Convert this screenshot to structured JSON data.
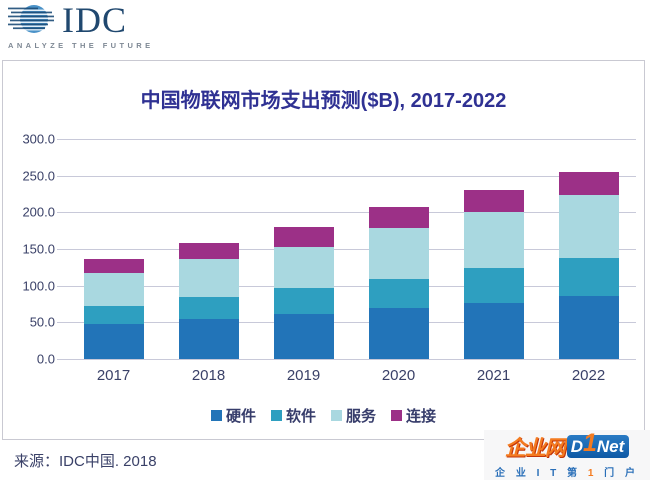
{
  "logo": {
    "wordmark": "IDC",
    "tagline": "ANALYZE THE FUTURE",
    "navy": "#20486F",
    "globe_blue": "#4A92C8"
  },
  "chart_data": {
    "type": "bar",
    "stacked": true,
    "title": "中国物联网市场支出预测($B), 2017-2022",
    "categories": [
      "2017",
      "2018",
      "2019",
      "2020",
      "2021",
      "2022"
    ],
    "series": [
      {
        "name": "硬件",
        "color": "#2274B8",
        "values": [
          48,
          54,
          61,
          69,
          76,
          86
        ]
      },
      {
        "name": "软件",
        "color": "#2E9FC0",
        "values": [
          24,
          30,
          36,
          40,
          48,
          52
        ]
      },
      {
        "name": "服务",
        "color": "#A9D8E0",
        "values": [
          45,
          52,
          56,
          70,
          76,
          86
        ]
      },
      {
        "name": "连接",
        "color": "#9C3087",
        "values": [
          20,
          22,
          27,
          28,
          30,
          31
        ]
      }
    ],
    "stack_totals_estimated": [
      137,
      158,
      180,
      207,
      230,
      255
    ],
    "ylim": [
      0,
      300
    ],
    "ytick_step": 50,
    "yticks": [
      "300.0",
      "250.0",
      "200.0",
      "150.0",
      "100.0",
      "50.0",
      "0.0"
    ],
    "grid": true,
    "legend_position": "bottom",
    "title_color": "#2F3193",
    "axis_text_color": "#3A4168",
    "gridline_color": "#C8C9D9"
  },
  "source": {
    "text": "来源：IDC中国. 2018"
  },
  "watermark": {
    "brand_cn": "企业网",
    "d1net": {
      "d": "D",
      "one": "1",
      "net": "Net"
    },
    "slogan_prefix": "企 业 I T 第 ",
    "slogan_num": "1",
    "slogan_suffix": " 门 户",
    "orange": "#F47B20",
    "blue": "#1668B3"
  }
}
